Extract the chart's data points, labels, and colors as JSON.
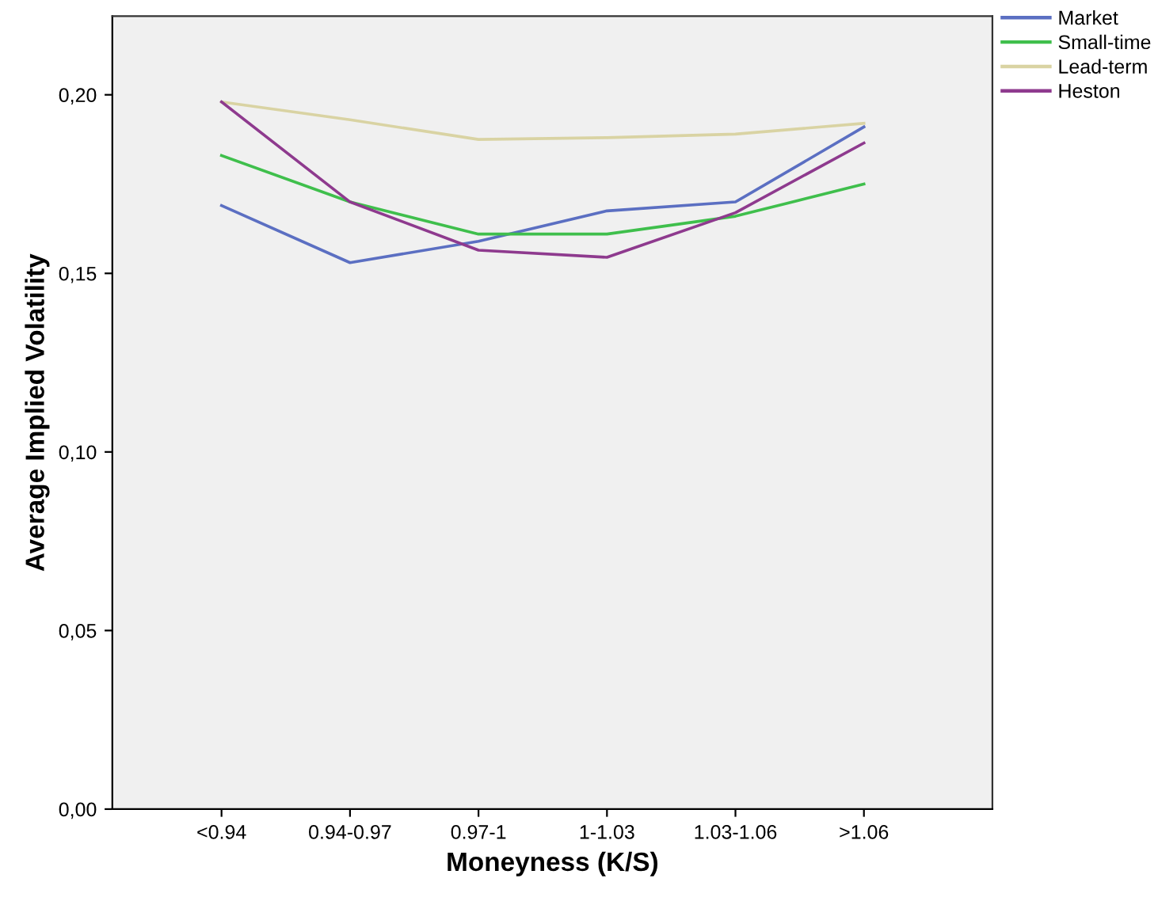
{
  "chart_data": {
    "type": "line",
    "xlabel": "Moneyness (K/S)",
    "ylabel": "Average Implied Volatility",
    "categories": [
      "<0.94",
      "0.94-0.97",
      "0.97-1",
      "1-1.03",
      "1.03-1.06",
      ">1.06"
    ],
    "series": [
      {
        "name": "Market",
        "color": "#5b6fc2",
        "values": [
          0.169,
          0.153,
          0.159,
          0.1675,
          0.17,
          0.191
        ]
      },
      {
        "name": "Small-time",
        "color": "#3fbf4c",
        "values": [
          0.183,
          0.17,
          0.161,
          0.161,
          0.166,
          0.175
        ]
      },
      {
        "name": "Lead-term",
        "color": "#d9d3a3",
        "values": [
          0.198,
          0.193,
          0.1875,
          0.188,
          0.189,
          0.192
        ]
      },
      {
        "name": "Heston",
        "color": "#8e3a8e",
        "values": [
          0.198,
          0.17,
          0.1565,
          0.1545,
          0.167,
          0.1865
        ]
      }
    ],
    "ylim": [
      0,
      0.222
    ],
    "yticks": [
      {
        "value": 0,
        "label": "0,00"
      },
      {
        "value": 0.05,
        "label": "0,05"
      },
      {
        "value": 0.1,
        "label": "0,10"
      },
      {
        "value": 0.15,
        "label": "0,15"
      },
      {
        "value": 0.2,
        "label": "0,20"
      }
    ],
    "grid": false,
    "legend": "top right",
    "marker": "none",
    "line_style": "solid"
  }
}
